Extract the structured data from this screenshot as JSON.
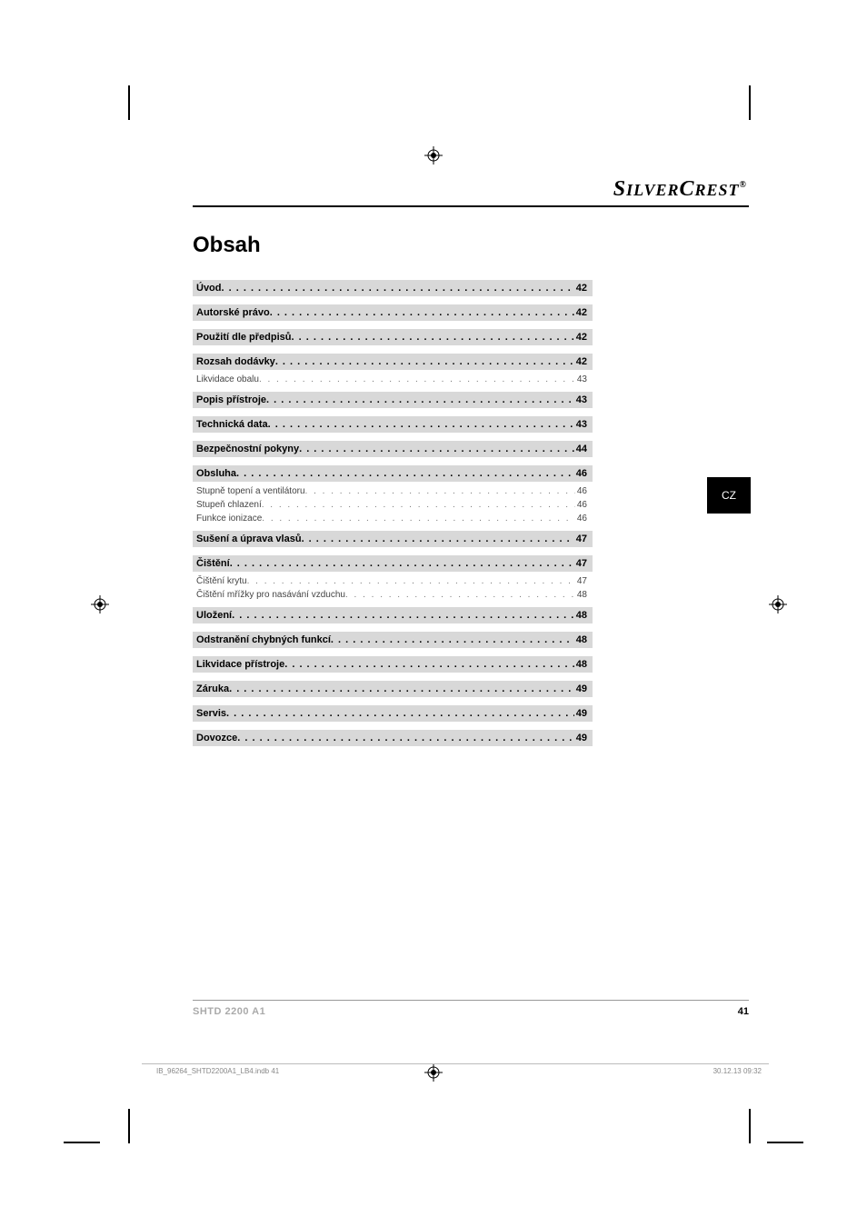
{
  "brand": "SilverCrest",
  "brand_reg": "®",
  "title": "Obsah",
  "lang_tab": "CZ",
  "toc": [
    {
      "type": "main",
      "label": "Úvod",
      "page": "42"
    },
    {
      "type": "main",
      "label": "Autorské právo",
      "page": "42"
    },
    {
      "type": "main",
      "label": "Použití dle předpisů",
      "page": "42"
    },
    {
      "type": "main",
      "label": "Rozsah dodávky",
      "page": "42"
    },
    {
      "type": "sub",
      "label": "Likvidace obalu",
      "page": "43"
    },
    {
      "type": "main",
      "label": "Popis přístroje",
      "page": "43"
    },
    {
      "type": "main",
      "label": "Technická data",
      "page": "43"
    },
    {
      "type": "main",
      "label": "Bezpečnostní pokyny",
      "page": "44"
    },
    {
      "type": "main",
      "label": "Obsluha",
      "page": "46"
    },
    {
      "type": "sub",
      "label": "Stupně topení a ventilátoru",
      "page": "46"
    },
    {
      "type": "sub",
      "label": "Stupeň chlazení",
      "page": "46"
    },
    {
      "type": "sub",
      "label": "Funkce ionizace",
      "page": "46"
    },
    {
      "type": "main",
      "label": "Sušení a úprava vlasů",
      "page": "47"
    },
    {
      "type": "main",
      "label": "Čištění",
      "page": "47"
    },
    {
      "type": "sub",
      "label": "Čištění krytu",
      "page": "47"
    },
    {
      "type": "sub",
      "label": "Čištění mřížky pro nasávání vzduchu",
      "page": "48"
    },
    {
      "type": "main",
      "label": "Uložení",
      "page": "48"
    },
    {
      "type": "main",
      "label": "Odstranění chybných funkcí",
      "page": "48"
    },
    {
      "type": "main",
      "label": "Likvidace přístroje",
      "page": "48"
    },
    {
      "type": "main",
      "label": "Záruka",
      "page": "49"
    },
    {
      "type": "main",
      "label": "Servis",
      "page": "49"
    },
    {
      "type": "main",
      "label": "Dovozce",
      "page": "49"
    }
  ],
  "footer_model": "SHTD 2200 A1",
  "footer_page": "41",
  "print_file": "IB_96264_SHTD2200A1_LB4.indb   41",
  "print_date": "30.12.13   09:32",
  "colors": {
    "entry_bg": "#d8d8d8",
    "sub_text": "#444444",
    "footer_model": "#aaaaaa",
    "print_info": "#888888",
    "tab_bg": "#000000",
    "tab_fg": "#ffffff"
  },
  "dot_fill": ". . . . . . . . . . . . . . . . . . . . . . . . . . . . . . . . . . . . . . . . . . . . . . . . . . . . . . . . . . . . . . . . . . . . . . . . . . . . . . . . . . . . . . . . . . . . . . . . . . . ."
}
